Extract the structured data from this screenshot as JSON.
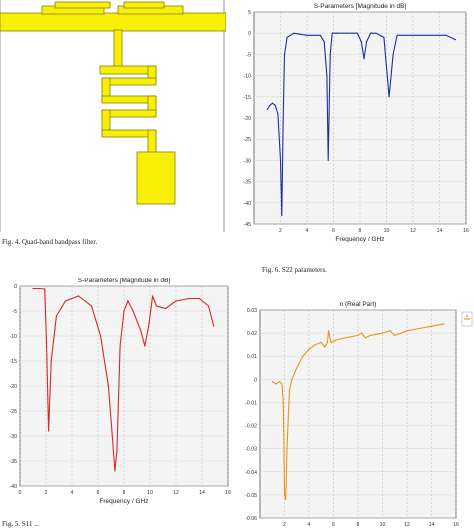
{
  "figures": {
    "fig4_caption": "Fig. 4.    Quad-band bandpass filter.",
    "fig6_caption": "Fig. 6.    S22 parameters.",
    "fig5_caption": "Fig. 5.    S11 ..."
  },
  "colors": {
    "filter_fill": "#f7ef05",
    "filter_stroke": "#8a8200",
    "s22": "#1e2f9e",
    "s11": "#d62828",
    "realpart": "#e8961e",
    "plot_bg": "#f4f4f4"
  },
  "chart_data": [
    {
      "id": "s22",
      "type": "line",
      "title": "S-Parameters [Magnitude in dB]",
      "xlabel": "Frequency / GHz",
      "ylabel": "",
      "xlim": [
        0,
        16
      ],
      "ylim": [
        -45,
        5
      ],
      "xticks": [
        "2",
        "4",
        "6",
        "8",
        "10",
        "12",
        "14",
        "16"
      ],
      "yticks": [
        "5",
        "0",
        "-5",
        "-10",
        "-15",
        "-20",
        "-25",
        "-30",
        "-35",
        "-40",
        "-45"
      ],
      "grid": true,
      "series": [
        {
          "x": [
            1,
            1.2,
            1.4,
            1.6,
            1.8,
            2.0,
            2.1,
            2.2,
            2.3,
            2.5,
            3.0,
            4,
            5,
            5.3,
            5.5,
            5.6,
            5.75,
            5.9,
            6.2,
            7,
            7.8,
            8.1,
            8.3,
            8.5,
            8.8,
            9.2,
            9.8,
            10.2,
            10.5,
            10.8,
            11.5,
            13,
            14.5,
            15.2
          ],
          "values": [
            -18,
            -17,
            -16.5,
            -17,
            -19,
            -30,
            -43,
            -20,
            -5,
            -1,
            0,
            -0.5,
            -0.5,
            -2,
            -10,
            -30,
            -5,
            0,
            0,
            0,
            0,
            -2,
            -6,
            -2,
            0,
            0,
            -1,
            -15,
            -5,
            -0.5,
            -0.5,
            -0.5,
            -0.5,
            -1.5
          ]
        }
      ]
    },
    {
      "id": "s11",
      "type": "line",
      "title": "S-Parameters [Magnitude in dB]",
      "xlabel": "Frequency / GHz",
      "ylabel": "",
      "xlim": [
        0,
        16
      ],
      "ylim": [
        -40,
        0
      ],
      "xticks": [
        "0",
        "2",
        "4",
        "6",
        "8",
        "10",
        "12",
        "14",
        "16"
      ],
      "yticks": [
        "0",
        "-5",
        "-10",
        "-15",
        "-20",
        "-25",
        "-30",
        "-35",
        "-40"
      ],
      "grid": true,
      "series": [
        {
          "x": [
            1,
            1.5,
            1.9,
            2.05,
            2.2,
            2.4,
            2.8,
            3.5,
            4.5,
            5.5,
            6.2,
            6.8,
            7.1,
            7.3,
            7.45,
            7.7,
            8,
            8.3,
            8.7,
            9.3,
            9.6,
            9.9,
            10.2,
            10.5,
            11.2,
            12,
            13,
            13.8,
            14.5,
            14.9
          ],
          "values": [
            -0.5,
            -0.5,
            -0.6,
            -12,
            -29,
            -15,
            -6,
            -3,
            -2,
            -4,
            -10,
            -20,
            -30,
            -37,
            -33,
            -12,
            -5,
            -3,
            -5,
            -9,
            -12,
            -8,
            -2,
            -4,
            -4.5,
            -3,
            -2.5,
            -2.5,
            -4,
            -8
          ]
        }
      ]
    },
    {
      "id": "realpart",
      "type": "line",
      "title": "n (Real Part)",
      "xlabel": "",
      "ylabel": "",
      "xlim": [
        0,
        16
      ],
      "ylim": [
        -0.06,
        0.03
      ],
      "xticks": [
        "2",
        "4",
        "6",
        "8",
        "10",
        "12",
        "14",
        "16"
      ],
      "yticks": [
        "0.03",
        "0.02",
        "0.01",
        "0",
        "-0.01",
        "-0.02",
        "-0.03",
        "-0.04",
        "-0.05",
        "-0.06"
      ],
      "grid": true,
      "series": [
        {
          "name": "1",
          "x": [
            1,
            1.3,
            1.6,
            1.8,
            1.9,
            2.0,
            2.1,
            2.2,
            2.4,
            2.6,
            3,
            3.5,
            4,
            4.5,
            5,
            5.3,
            5.5,
            5.6,
            5.8,
            6.2,
            7,
            8,
            8.3,
            8.6,
            9,
            10,
            10.6,
            11,
            12,
            13,
            14,
            15
          ],
          "values": [
            -0.001,
            -0.002,
            -0.001,
            -0.002,
            -0.01,
            -0.05,
            -0.052,
            -0.03,
            -0.005,
            0.0,
            0.005,
            0.01,
            0.013,
            0.015,
            0.016,
            0.014,
            0.016,
            0.021,
            0.016,
            0.017,
            0.018,
            0.019,
            0.02,
            0.018,
            0.019,
            0.02,
            0.021,
            0.019,
            0.021,
            0.022,
            0.023,
            0.024
          ]
        }
      ]
    }
  ]
}
